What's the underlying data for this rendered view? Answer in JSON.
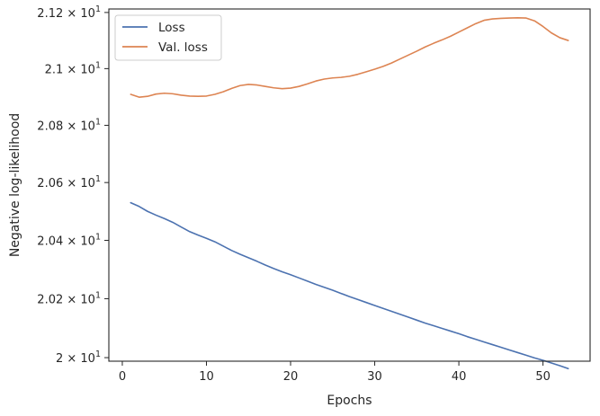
{
  "chart_data": {
    "type": "line",
    "xlabel": "Epochs",
    "ylabel": "Negative log-likelihood",
    "xlim": [
      -1.6,
      55.6
    ],
    "ylim": [
      19.988,
      21.2125
    ],
    "x_ticks": [
      0,
      10,
      20,
      30,
      40,
      50
    ],
    "x_tick_labels": [
      "0",
      "10",
      "20",
      "30",
      "40",
      "50"
    ],
    "y_ticks": [
      20.0,
      20.2,
      20.4,
      20.6,
      20.8,
      21.0,
      21.2
    ],
    "y_tick_labels": [
      {
        "mantissa": "2",
        "exponent": "1"
      },
      {
        "mantissa": "2.02",
        "exponent": "1"
      },
      {
        "mantissa": "2.04",
        "exponent": "1"
      },
      {
        "mantissa": "2.06",
        "exponent": "1"
      },
      {
        "mantissa": "2.08",
        "exponent": "1"
      },
      {
        "mantissa": "2.1",
        "exponent": "1"
      },
      {
        "mantissa": "2.12",
        "exponent": "1"
      }
    ],
    "y_scale": "log",
    "grid": false,
    "legend_position": "top-left",
    "series": [
      {
        "name": "Loss",
        "color": "#4c72b0",
        "x": [
          1,
          2,
          3,
          4,
          5,
          6,
          7,
          8,
          9,
          10,
          11,
          12,
          13,
          14,
          15,
          16,
          17,
          18,
          19,
          20,
          21,
          22,
          23,
          24,
          25,
          26,
          27,
          28,
          29,
          30,
          31,
          32,
          33,
          34,
          35,
          36,
          37,
          38,
          39,
          40,
          41,
          42,
          43,
          44,
          45,
          46,
          47,
          48,
          49,
          50,
          51,
          52,
          53
        ],
        "values": [
          20.53,
          20.517,
          20.5,
          20.487,
          20.475,
          20.462,
          20.446,
          20.43,
          20.418,
          20.407,
          20.395,
          20.38,
          20.365,
          20.352,
          20.34,
          20.328,
          20.315,
          20.303,
          20.292,
          20.282,
          20.271,
          20.26,
          20.249,
          20.239,
          20.229,
          20.218,
          20.207,
          20.197,
          20.187,
          20.177,
          20.167,
          20.157,
          20.147,
          20.137,
          20.127,
          20.117,
          20.108,
          20.099,
          20.09,
          20.081,
          20.071,
          20.062,
          20.053,
          20.044,
          20.035,
          20.026,
          20.017,
          20.008,
          19.999,
          19.991,
          19.982,
          19.973,
          19.963
        ]
      },
      {
        "name": "Val. loss",
        "color": "#dd8452",
        "x": [
          1,
          2,
          3,
          4,
          5,
          6,
          7,
          8,
          9,
          10,
          11,
          12,
          13,
          14,
          15,
          16,
          17,
          18,
          19,
          20,
          21,
          22,
          23,
          24,
          25,
          26,
          27,
          28,
          29,
          30,
          31,
          32,
          33,
          34,
          35,
          36,
          37,
          38,
          39,
          40,
          41,
          42,
          43,
          44,
          45,
          46,
          47,
          48,
          49,
          50,
          51,
          52,
          53
        ],
        "values": [
          20.909,
          20.899,
          20.902,
          20.91,
          20.913,
          20.911,
          20.906,
          20.903,
          20.902,
          20.903,
          20.909,
          20.918,
          20.93,
          20.94,
          20.944,
          20.942,
          20.937,
          20.932,
          20.929,
          20.931,
          20.937,
          20.946,
          20.956,
          20.963,
          20.967,
          20.969,
          20.973,
          20.98,
          20.989,
          20.998,
          21.008,
          21.02,
          21.034,
          21.048,
          21.062,
          21.077,
          21.09,
          21.102,
          21.115,
          21.13,
          21.145,
          21.16,
          21.172,
          21.177,
          21.179,
          21.18,
          21.181,
          21.18,
          21.17,
          21.15,
          21.127,
          21.11,
          21.1
        ]
      }
    ]
  }
}
